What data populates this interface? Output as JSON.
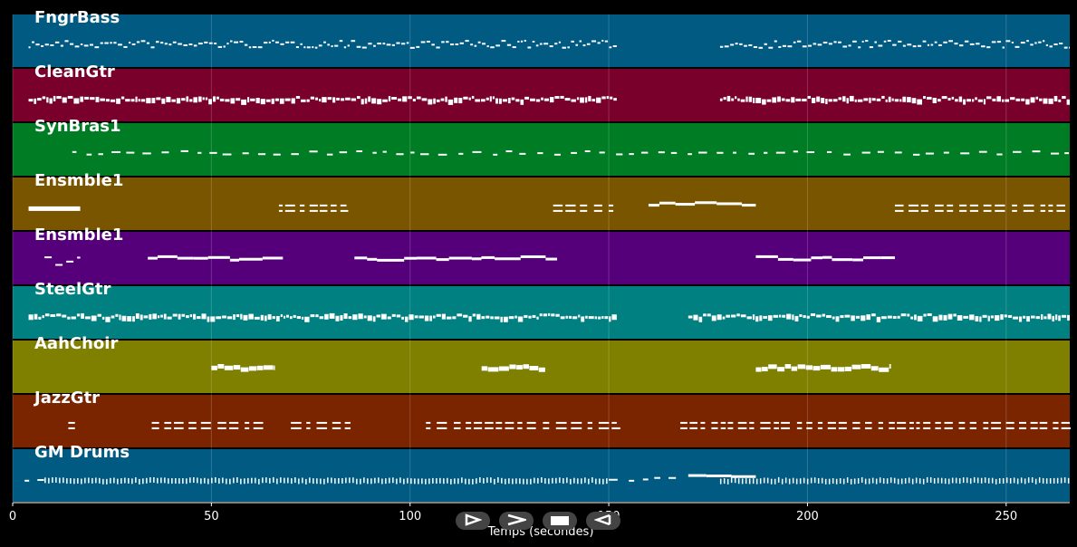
{
  "timeline": {
    "x_unit": "seconds",
    "x_min": 0,
    "x_max": 266,
    "ticks": [
      0,
      50,
      100,
      150,
      200,
      250
    ],
    "xlabel": "Temps (secondes)"
  },
  "tracks": [
    {
      "name": "FngrBass",
      "color": "#005a82",
      "clusters": [
        [
          4,
          152,
          "dense-low"
        ],
        [
          178,
          266,
          "dense-low"
        ]
      ]
    },
    {
      "name": "CleanGtr",
      "color": "#7a002c",
      "clusters": [
        [
          4,
          152,
          "dense"
        ],
        [
          178,
          266,
          "dense"
        ]
      ]
    },
    {
      "name": "SynBras1",
      "color": "#007d24",
      "clusters": [
        [
          15,
          266,
          "sparse"
        ]
      ]
    },
    {
      "name": "Ensmble1",
      "color": "#7a5500",
      "clusters": [
        [
          4,
          17,
          "block"
        ],
        [
          67,
          84,
          "pair"
        ],
        [
          136,
          152,
          "pair"
        ],
        [
          160,
          187,
          "line"
        ],
        [
          222,
          266,
          "pair"
        ]
      ]
    },
    {
      "name": "Ensmble1",
      "color": "#55007a",
      "clusters": [
        [
          8,
          17,
          "steps"
        ],
        [
          34,
          68,
          "line"
        ],
        [
          86,
          137,
          "line"
        ],
        [
          187,
          222,
          "line"
        ]
      ]
    },
    {
      "name": "SteelGtr",
      "color": "#008080",
      "clusters": [
        [
          4,
          152,
          "dense"
        ],
        [
          170,
          266,
          "dense"
        ]
      ]
    },
    {
      "name": "AahChoir",
      "color": "#7f7f00",
      "clusters": [
        [
          50,
          66,
          "chord"
        ],
        [
          118,
          134,
          "chord"
        ],
        [
          187,
          221,
          "chord"
        ]
      ]
    },
    {
      "name": "JazzGtr",
      "color": "#7a2400",
      "clusters": [
        [
          14,
          17,
          "pair"
        ],
        [
          35,
          64,
          "pair"
        ],
        [
          70,
          85,
          "pair"
        ],
        [
          104,
          152,
          "pair"
        ],
        [
          168,
          266,
          "pair"
        ]
      ]
    },
    {
      "name": "GM Drums",
      "color": "#005a82",
      "clusters": [
        [
          3,
          9,
          "sparse"
        ],
        [
          8,
          150,
          "drums"
        ],
        [
          150,
          168,
          "sparse"
        ],
        [
          170,
          187,
          "line"
        ],
        [
          178,
          266,
          "drums"
        ]
      ]
    }
  ],
  "controls": [
    {
      "name": "play-button",
      "icon": "play-icon"
    },
    {
      "name": "fast-forward-button",
      "icon": "fast-forward-icon"
    },
    {
      "name": "stop-button",
      "icon": "stop-icon"
    },
    {
      "name": "rewind-button",
      "icon": "rewind-icon"
    }
  ]
}
